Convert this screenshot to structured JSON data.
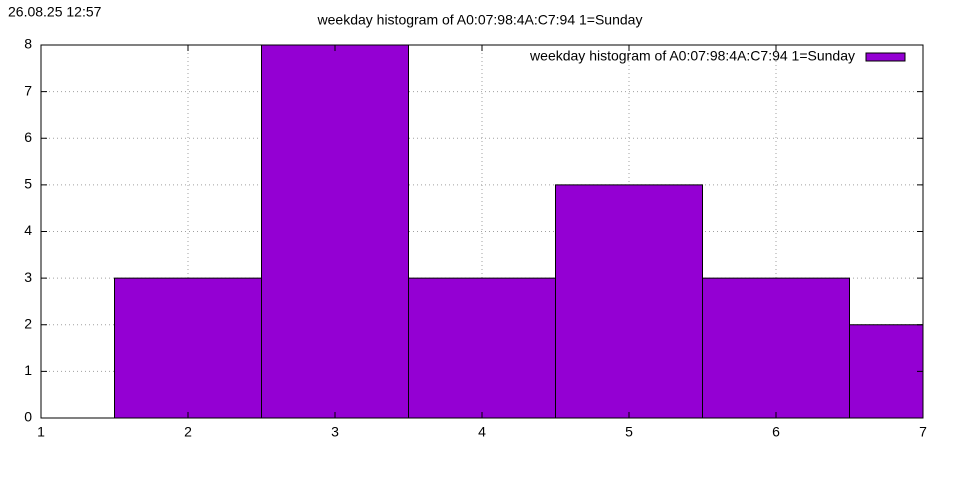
{
  "chart_data": {
    "type": "bar",
    "timestamp": "26.08.25 12:57",
    "title": "weekday histogram of A0:07:98:4A:C7:94 1=Sunday",
    "x": [
      2,
      3,
      4,
      5,
      6,
      7
    ],
    "series": [
      {
        "name": "weekday histogram of A0:07:98:4A:C7:94 1=Sunday",
        "color": "#9400d3",
        "values": [
          3,
          8,
          3,
          5,
          3,
          2
        ]
      }
    ],
    "xlim": [
      1,
      7
    ],
    "xticks": [
      1,
      2,
      3,
      4,
      5,
      6,
      7
    ],
    "ylim": [
      0,
      8
    ],
    "yticks": [
      0,
      1,
      2,
      3,
      4,
      5,
      6,
      7,
      8
    ],
    "grid": true,
    "legend": "top right"
  }
}
